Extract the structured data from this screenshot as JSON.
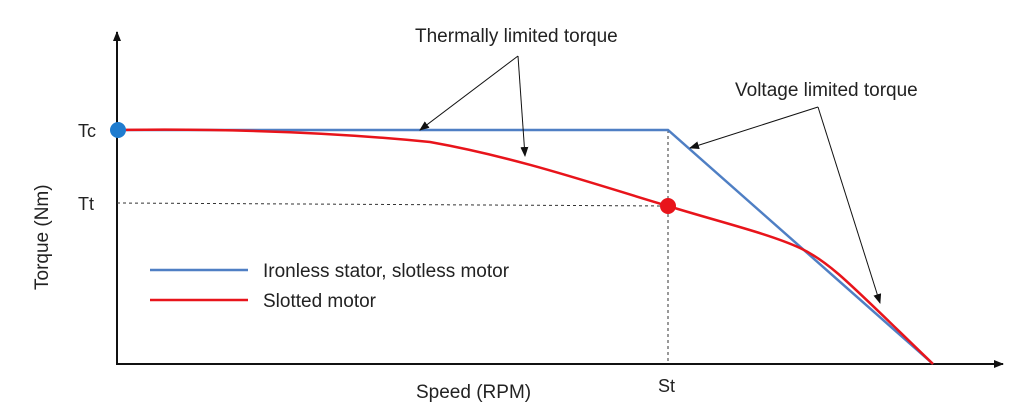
{
  "axes": {
    "x_label": "Speed (RPM)",
    "y_label": "Torque (Nm)",
    "y_ticks": [
      "Tc",
      "Tt"
    ],
    "x_ticks": [
      "St"
    ]
  },
  "annotations": {
    "thermal": "Thermally limited torque",
    "voltage": "Voltage limited torque"
  },
  "legend": {
    "ironless": "Ironless stator, slotless motor",
    "slotted": "Slotted motor"
  },
  "colors": {
    "ironless": "#4f7fc4",
    "slotted": "#e8141b",
    "tc_marker": "#1f7ccf",
    "tt_marker": "#e8141b",
    "axis": "#111111"
  }
}
